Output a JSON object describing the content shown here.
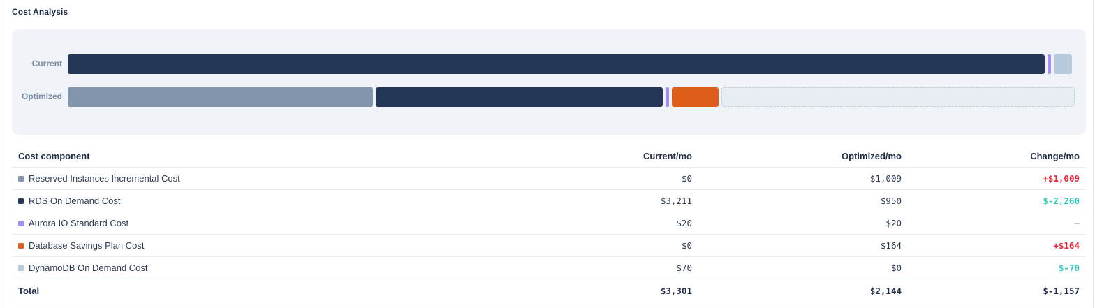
{
  "panel": {
    "title": "Cost Analysis"
  },
  "colors": {
    "reserved_instances": "#8394ad",
    "rds_on_demand": "#243757",
    "aurora_io": "#a68ef7",
    "savings_plan": "#df5d1a",
    "dynamodb": "#b5cbdc",
    "increase": "#e5273a",
    "decrease": "#2ec9b6"
  },
  "chart": {
    "rows": [
      {
        "label": "Current",
        "total": 3301,
        "segments": [
          {
            "component": "RDS On Demand Cost",
            "value": 3211,
            "color": "#243757"
          },
          {
            "component": "Aurora IO Standard Cost",
            "value": 20,
            "color": "#a68ef7"
          },
          {
            "component": "DynamoDB On Demand Cost",
            "value": 70,
            "color": "#b5cbdc"
          }
        ]
      },
      {
        "label": "Optimized",
        "total": 2144,
        "segments": [
          {
            "component": "Reserved Instances Incremental Cost",
            "value": 1009,
            "color": "#8394ad"
          },
          {
            "component": "RDS On Demand Cost",
            "value": 950,
            "color": "#243757"
          },
          {
            "component": "Aurora IO Standard Cost",
            "value": 20,
            "color": "#a68ef7"
          },
          {
            "component": "Database Savings Plan Cost",
            "value": 164,
            "color": "#df5d1a"
          }
        ],
        "savings_value": 1157
      }
    ]
  },
  "table": {
    "headers": {
      "component": "Cost component",
      "current": "Current/mo",
      "optimized": "Optimized/mo",
      "change": "Change/mo"
    },
    "rows": [
      {
        "name": "Reserved Instances Incremental Cost",
        "swatch": "#8394ad",
        "current": "$0",
        "optimized": "$1,009",
        "change": "+$1,009",
        "direction": "up"
      },
      {
        "name": "RDS On Demand Cost",
        "swatch": "#243757",
        "current": "$3,211",
        "optimized": "$950",
        "change": "$-2,260",
        "direction": "down"
      },
      {
        "name": "Aurora IO Standard Cost",
        "swatch": "#a68ef7",
        "current": "$20",
        "optimized": "$20",
        "change": "–",
        "direction": "none"
      },
      {
        "name": "Database Savings Plan Cost",
        "swatch": "#df5d1a",
        "current": "$0",
        "optimized": "$164",
        "change": "+$164",
        "direction": "up"
      },
      {
        "name": "DynamoDB On Demand Cost",
        "swatch": "#b5cbdc",
        "current": "$70",
        "optimized": "$0",
        "change": "$-70",
        "direction": "down"
      }
    ],
    "total": {
      "label": "Total",
      "current": "$3,301",
      "optimized": "$2,144",
      "change": "$-1,157",
      "direction": "down"
    }
  }
}
